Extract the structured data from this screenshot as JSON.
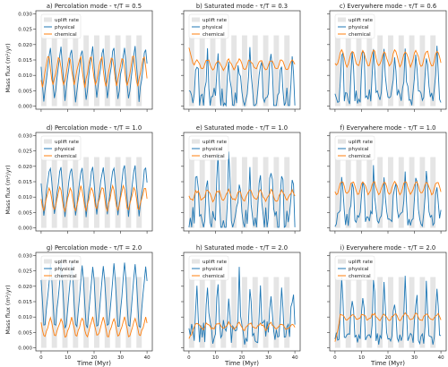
{
  "figure": {
    "y_axis_label": "Mass flux (m²/yr)",
    "x_axis_label": "Time (Myr)",
    "legend_labels": [
      "uplift rate",
      "physical",
      "chemical"
    ],
    "colors": {
      "uplift": "#e5e5e5",
      "physical": "#1f77b4",
      "chemical": "#ff7f0e"
    }
  },
  "chart_data": [
    {
      "type": "line",
      "title": "a) Percolation mode - τ/T = 0.5",
      "xlim": [
        -2,
        42
      ],
      "ylim": [
        -0.001,
        0.031
      ],
      "yticks": [
        0.0,
        0.005,
        0.01,
        0.015,
        0.02,
        0.025,
        0.03
      ],
      "xticks": [
        0,
        10,
        20,
        30,
        40
      ],
      "series": [
        {
          "name": "physical",
          "period": 4,
          "phase": 0.75,
          "min": 0.002,
          "max": 0.02,
          "shape": "saw",
          "noise": 0.001
        },
        {
          "name": "chemical",
          "period": 4,
          "phase": 0.9,
          "min": 0.006,
          "max": 0.017,
          "shape": "saw",
          "noise": 0.0006
        }
      ]
    },
    {
      "type": "line",
      "title": "b) Saturated mode - τ/T = 0.3",
      "xlim": [
        -2,
        42
      ],
      "ylim": [
        -0.001,
        0.031
      ],
      "yticks": [
        0.0,
        0.005,
        0.01,
        0.015,
        0.02,
        0.025,
        0.03
      ],
      "xticks": [
        0,
        10,
        20,
        30,
        40
      ],
      "series": [
        {
          "name": "physical",
          "period": 4,
          "phase": 0.5,
          "min": 0.002,
          "max": 0.019,
          "shape": "spike",
          "noise": 0.004
        },
        {
          "name": "chemical",
          "period": 4,
          "phase": 0.5,
          "min": 0.012,
          "max": 0.015,
          "shape": "sine",
          "noise": 0.0004,
          "start": 0.019
        }
      ]
    },
    {
      "type": "line",
      "title": "c) Everywhere mode - τ/T = 0.6",
      "xlim": [
        -2,
        42
      ],
      "ylim": [
        -0.001,
        0.031
      ],
      "yticks": [
        0.0,
        0.005,
        0.01,
        0.015,
        0.02,
        0.025,
        0.03
      ],
      "xticks": [
        0,
        10,
        20,
        30,
        40
      ],
      "series": [
        {
          "name": "physical",
          "period": 4,
          "phase": 0.6,
          "min": 0.003,
          "max": 0.021,
          "shape": "spike",
          "noise": 0.003
        },
        {
          "name": "chemical",
          "period": 4,
          "phase": 0.6,
          "min": 0.013,
          "max": 0.018,
          "shape": "sine",
          "noise": 0.0004
        }
      ]
    },
    {
      "type": "line",
      "title": "d) Percolation mode - τ/T = 1.0",
      "xlim": [
        -2,
        42
      ],
      "ylim": [
        -0.001,
        0.031
      ],
      "yticks": [
        0.0,
        0.005,
        0.01,
        0.015,
        0.02,
        0.025,
        0.03
      ],
      "xticks": [
        0,
        10,
        20,
        30,
        40
      ],
      "series": [
        {
          "name": "physical",
          "period": 4,
          "phase": 0.75,
          "min": 0.004,
          "max": 0.021,
          "shape": "saw",
          "noise": 0.0008
        },
        {
          "name": "chemical",
          "period": 4,
          "phase": 0.8,
          "min": 0.005,
          "max": 0.014,
          "shape": "saw",
          "noise": 0.0005
        }
      ]
    },
    {
      "type": "line",
      "title": "e) Saturated mode - τ/T = 1.0",
      "xlim": [
        -2,
        42
      ],
      "ylim": [
        -0.001,
        0.031
      ],
      "yticks": [
        0.0,
        0.005,
        0.01,
        0.015,
        0.02,
        0.025,
        0.03
      ],
      "xticks": [
        0,
        10,
        20,
        30,
        40
      ],
      "series": [
        {
          "name": "physical",
          "period": 4,
          "phase": 0.5,
          "min": 0.002,
          "max": 0.022,
          "shape": "spike",
          "noise": 0.005
        },
        {
          "name": "chemical",
          "period": 4,
          "phase": 0.5,
          "min": 0.009,
          "max": 0.012,
          "shape": "sine",
          "noise": 0.0006
        }
      ]
    },
    {
      "type": "line",
      "title": "f) Everywhere mode - τ/T = 1.0",
      "xlim": [
        -2,
        42
      ],
      "ylim": [
        -0.001,
        0.031
      ],
      "yticks": [
        0.0,
        0.005,
        0.01,
        0.015,
        0.02,
        0.025,
        0.03
      ],
      "xticks": [
        0,
        10,
        20,
        30,
        40
      ],
      "series": [
        {
          "name": "physical",
          "period": 4,
          "phase": 0.6,
          "min": 0.003,
          "max": 0.019,
          "shape": "spike",
          "noise": 0.003
        },
        {
          "name": "chemical",
          "period": 4,
          "phase": 0.6,
          "min": 0.011,
          "max": 0.015,
          "shape": "sine",
          "noise": 0.0004
        }
      ]
    },
    {
      "type": "line",
      "title": "g) Percolation mode - τ/T = 2.0",
      "xlim": [
        -2,
        42
      ],
      "ylim": [
        -0.001,
        0.031
      ],
      "yticks": [
        0.0,
        0.005,
        0.01,
        0.015,
        0.02,
        0.025,
        0.03
      ],
      "xticks": [
        0,
        10,
        20,
        30,
        40
      ],
      "series": [
        {
          "name": "physical",
          "period": 4,
          "phase": 0.7,
          "min": 0.004,
          "max": 0.028,
          "shape": "saw",
          "noise": 0.0008
        },
        {
          "name": "chemical",
          "period": 4,
          "phase": 0.7,
          "min": 0.003,
          "max": 0.01,
          "shape": "saw",
          "noise": 0.0004
        }
      ]
    },
    {
      "type": "line",
      "title": "h) Saturated mode - τ/T = 2.0",
      "xlim": [
        -2,
        42
      ],
      "ylim": [
        -0.001,
        0.031
      ],
      "yticks": [
        0.0,
        0.005,
        0.01,
        0.015,
        0.02,
        0.025,
        0.03
      ],
      "xticks": [
        0,
        10,
        20,
        30,
        40
      ],
      "series": [
        {
          "name": "physical",
          "period": 4,
          "phase": 0.5,
          "min": 0.005,
          "max": 0.023,
          "shape": "spike",
          "noise": 0.004
        },
        {
          "name": "chemical",
          "period": 4,
          "phase": 0.5,
          "min": 0.006,
          "max": 0.008,
          "shape": "sine",
          "noise": 0.0005,
          "start": 0.003
        }
      ]
    },
    {
      "type": "line",
      "title": "i) Everywhere mode - τ/T = 2.0",
      "xlim": [
        -2,
        42
      ],
      "ylim": [
        -0.001,
        0.031
      ],
      "yticks": [
        0.0,
        0.005,
        0.01,
        0.015,
        0.02,
        0.025,
        0.03
      ],
      "xticks": [
        0,
        10,
        20,
        30,
        40
      ],
      "series": [
        {
          "name": "physical",
          "period": 4,
          "phase": 0.6,
          "min": 0.003,
          "max": 0.024,
          "shape": "spike",
          "noise": 0.002
        },
        {
          "name": "chemical",
          "period": 4,
          "phase": 0.6,
          "min": 0.009,
          "max": 0.011,
          "shape": "sine",
          "noise": 0.0004,
          "start": 0.002
        }
      ]
    }
  ]
}
